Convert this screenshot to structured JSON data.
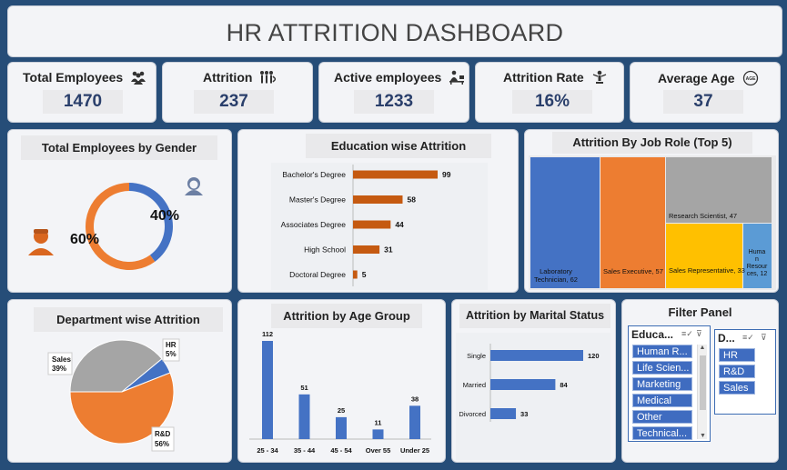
{
  "dashboard_title": "HR ATTRITION DASHBOARD",
  "kpis": [
    {
      "label": "Total Employees",
      "value": "1470",
      "icon": "people-icon"
    },
    {
      "label": "Attrition",
      "value": "237",
      "icon": "people-leaving-icon"
    },
    {
      "label": "Active employees",
      "value": "1233",
      "icon": "employee-desk-icon"
    },
    {
      "label": "Attrition Rate",
      "value": "16%",
      "icon": "person-rate-icon"
    },
    {
      "label": "Average Age",
      "value": "37",
      "icon": "age-icon"
    }
  ],
  "gender": {
    "title": "Total Employees by Gender",
    "female_pct": "40%",
    "male_pct": "60%",
    "female_value": 40,
    "male_value": 60
  },
  "education": {
    "title": "Education wise Attrition",
    "categories": [
      "Bachelor's Degree",
      "Master's Degree",
      "Associates Degree",
      "High School",
      "Doctoral Degree"
    ],
    "values": [
      99,
      58,
      44,
      31,
      5
    ],
    "value_labels": [
      "99",
      "58",
      "44",
      "31",
      "5"
    ]
  },
  "job_role": {
    "title": "Attrition By Job Role (Top 5)",
    "labels": [
      "Laboratory Technician, 62",
      "Sales Executive, 57",
      "Research Scientist, 47",
      "Sales Representative, 33",
      "Human Resources, 12"
    ]
  },
  "department": {
    "title": "Department wise Attrition",
    "labels": [
      "Sales",
      "HR",
      "R&D"
    ],
    "pcts": [
      "39%",
      "5%",
      "56%"
    ]
  },
  "age_group": {
    "title": "Attrition by Age Group",
    "categories": [
      "25 - 34",
      "35 - 44",
      "45 - 54",
      "Over 55",
      "Under 25"
    ],
    "values": [
      112,
      51,
      25,
      11,
      38
    ],
    "value_labels": [
      "112",
      "51",
      "25",
      "11",
      "38"
    ]
  },
  "marital": {
    "title": "Attrition by Marital Status",
    "categories": [
      "Single",
      "Married",
      "Divorced"
    ],
    "values": [
      120,
      84,
      33
    ],
    "value_labels": [
      "120",
      "84",
      "33"
    ]
  },
  "filter_panel": {
    "title": "Filter Panel",
    "education_header": "Educa...",
    "education_items": [
      "Human R...",
      "Life Scien...",
      "Marketing",
      "Medical",
      "Other",
      "Technical..."
    ],
    "department_header": "D...",
    "department_items": [
      "HR",
      "R&D",
      "Sales"
    ]
  },
  "colors": {
    "blue": "#4472c4",
    "orange": "#ed7d31",
    "gray": "#a5a5a5",
    "yellow": "#ffc000",
    "light_blue": "#5b9bd5",
    "edu_bar": "#c55a11",
    "navy": "#264d78"
  },
  "chart_data": [
    {
      "type": "pie",
      "title": "Total Employees by Gender",
      "labels": [
        "Female",
        "Male"
      ],
      "values": [
        40,
        60
      ]
    },
    {
      "type": "bar",
      "title": "Education wise Attrition",
      "categories": [
        "Bachelor's Degree",
        "Master's Degree",
        "Associates Degree",
        "High School",
        "Doctoral Degree"
      ],
      "values": [
        99,
        58,
        44,
        31,
        5
      ]
    },
    {
      "type": "bar",
      "title": "Attrition By Job Role (Top 5)",
      "categories": [
        "Laboratory Technician",
        "Sales Executive",
        "Research Scientist",
        "Sales Representative",
        "Human Resources"
      ],
      "values": [
        62,
        57,
        47,
        33,
        12
      ]
    },
    {
      "type": "pie",
      "title": "Department wise Attrition",
      "labels": [
        "Sales",
        "HR",
        "R&D"
      ],
      "values": [
        39,
        5,
        56
      ]
    },
    {
      "type": "bar",
      "title": "Attrition by Age Group",
      "categories": [
        "25 - 34",
        "35 - 44",
        "45 - 54",
        "Over 55",
        "Under 25"
      ],
      "values": [
        112,
        51,
        25,
        11,
        38
      ]
    },
    {
      "type": "bar",
      "title": "Attrition by Marital Status",
      "categories": [
        "Single",
        "Married",
        "Divorced"
      ],
      "values": [
        120,
        84,
        33
      ]
    }
  ]
}
